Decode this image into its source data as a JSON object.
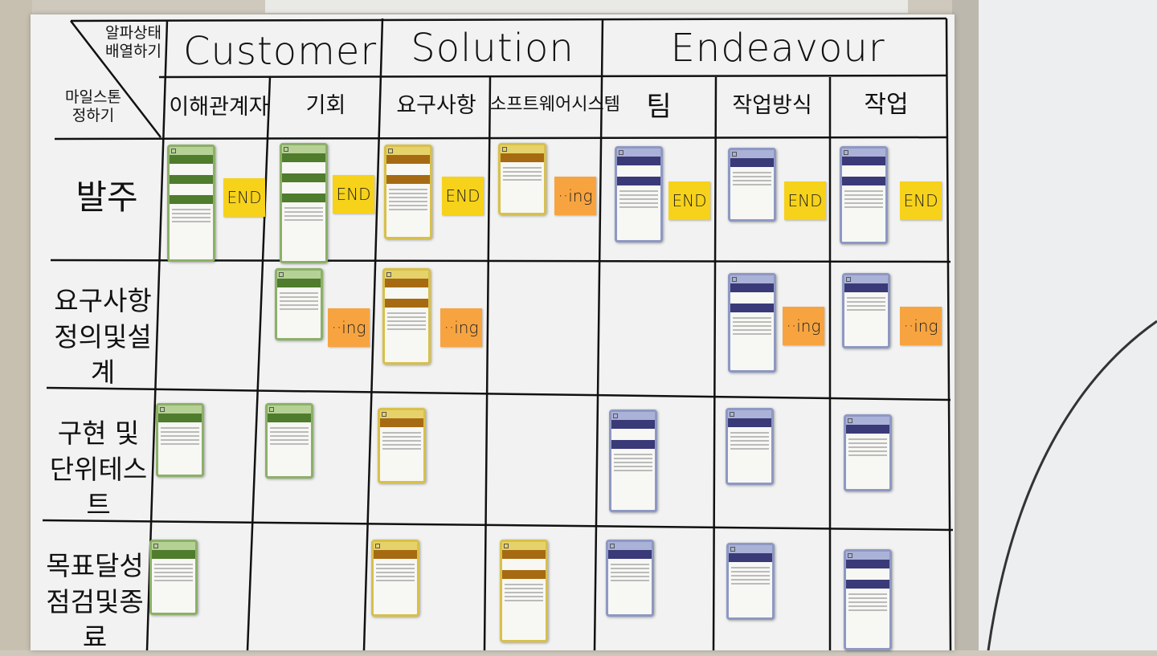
{
  "board": {
    "corner_top": "알파상태 배열하기",
    "corner_bottom": "마일스톤 정하기",
    "groups": [
      "Customer",
      "Solution",
      "Endeavour"
    ],
    "columns": [
      "이해관계자",
      "기회",
      "요구사항",
      "소프트웨어시스템",
      "팀",
      "작업방식",
      "작업"
    ],
    "rows": [
      "발주",
      "요구사항 정의및설계",
      "구현 및 단위테스트",
      "목표달성 점검및종료"
    ]
  },
  "notes": {
    "end_label": "END",
    "ing_label": "··ing"
  },
  "colors": {
    "customer_card": "#4f7c2d",
    "solution_card": "#a66b12",
    "endeavour_card": "#3a3a78",
    "end_note": "#f7d21a",
    "ing_note": "#f7a440"
  }
}
